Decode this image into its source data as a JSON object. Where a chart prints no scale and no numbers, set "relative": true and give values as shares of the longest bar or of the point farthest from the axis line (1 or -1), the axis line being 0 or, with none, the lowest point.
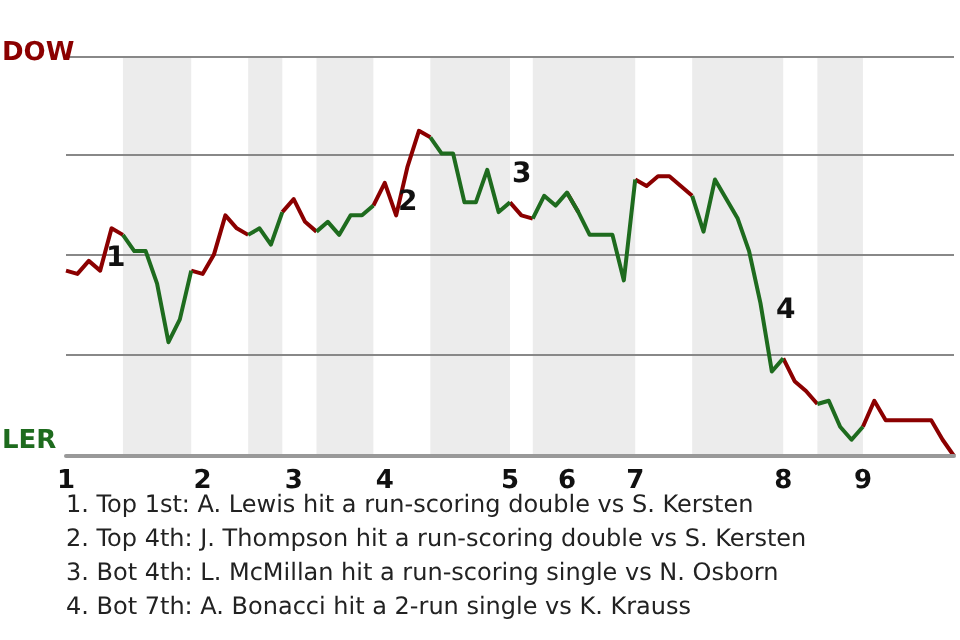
{
  "chart_data": {
    "type": "line",
    "relative": true,
    "categories": [
      "1",
      null,
      null,
      null,
      null,
      null,
      null,
      null,
      null,
      null,
      null,
      null,
      "2",
      null,
      null,
      null,
      null,
      null,
      null,
      null,
      "3",
      null,
      null,
      null,
      null,
      null,
      null,
      null,
      "4",
      null,
      null,
      null,
      null,
      null,
      null,
      null,
      null,
      null,
      null,
      "5",
      null,
      null,
      null,
      null,
      "6",
      null,
      null,
      null,
      null,
      null,
      "7",
      null,
      null,
      null,
      null,
      null,
      null,
      null,
      null,
      null,
      null,
      null,
      null,
      "8",
      null,
      null,
      null,
      null,
      null,
      null,
      "9",
      null,
      null,
      null,
      null,
      null,
      null,
      null,
      null
    ],
    "marker": "none",
    "line_style": "solid",
    "series": [
      {
        "name": "DOW",
        "color": "#8b0000",
        "values": [
          0.57,
          0.56,
          0.6,
          0.57,
          0.7,
          0.68,
          null,
          null,
          null,
          null,
          null,
          0.57,
          0.56,
          0.62,
          0.74,
          0.7,
          0.68,
          null,
          null,
          0.75,
          0.79,
          0.72,
          0.69,
          null,
          null,
          null,
          null,
          0.77,
          0.84,
          0.74,
          0.89,
          1,
          0.98,
          null,
          null,
          null,
          null,
          null,
          null,
          0.78,
          0.74,
          0.73,
          null,
          null,
          0.81,
          0.75,
          null,
          null,
          null,
          null,
          0.85,
          0.83,
          0.86,
          0.86,
          0.83,
          0.8,
          null,
          null,
          null,
          null,
          null,
          null,
          null,
          0.3,
          0.23,
          0.2,
          0.16,
          null,
          null,
          null,
          0.09,
          0.17,
          0.11,
          0.11,
          0.11,
          0.11,
          0.11,
          0.05,
          0
        ]
      },
      {
        "name": "LER",
        "color": "#1e6b1e",
        "values": [
          null,
          null,
          null,
          null,
          null,
          0.68,
          0.63,
          0.63,
          0.53,
          0.35,
          0.42,
          0.57,
          null,
          null,
          null,
          null,
          0.68,
          0.7,
          0.65,
          0.75,
          null,
          null,
          0.69,
          0.72,
          0.68,
          0.74,
          0.74,
          0.77,
          null,
          null,
          null,
          null,
          0.98,
          0.93,
          0.93,
          0.78,
          0.78,
          0.88,
          0.75,
          0.78,
          null,
          0.73,
          0.8,
          0.77,
          0.81,
          0.75,
          0.68,
          0.68,
          0.68,
          0.54,
          0.85,
          null,
          null,
          null,
          null,
          0.8,
          0.69,
          0.85,
          0.79,
          0.73,
          0.63,
          0.47,
          0.26,
          0.3,
          null,
          null,
          0.16,
          0.17,
          0.09,
          0.05,
          0.09,
          null,
          null,
          null,
          null,
          null,
          null,
          null,
          null
        ]
      }
    ],
    "ref_lines": [
      {
        "axis": "y",
        "value": 1.23,
        "color": "#888888"
      },
      {
        "axis": "y",
        "value": 0.93,
        "color": "#888888"
      },
      {
        "axis": "y",
        "value": 0.62,
        "color": "#888888"
      },
      {
        "axis": "y",
        "value": 0.31,
        "color": "#888888"
      }
    ],
    "annotations": [
      "1",
      "2",
      "3",
      "4",
      "1. Top 1st: A. Lewis hit a run-scoring double vs S. Kersten",
      "2. Top 4th: J. Thompson hit a run-scoring double vs S. Kersten",
      "3. Bot 4th: L. McMillan hit a run-scoring single vs N. Osborn",
      "4. Bot 7th: A. Bonacci hit a 2-run single vs K. Krauss"
    ]
  }
}
